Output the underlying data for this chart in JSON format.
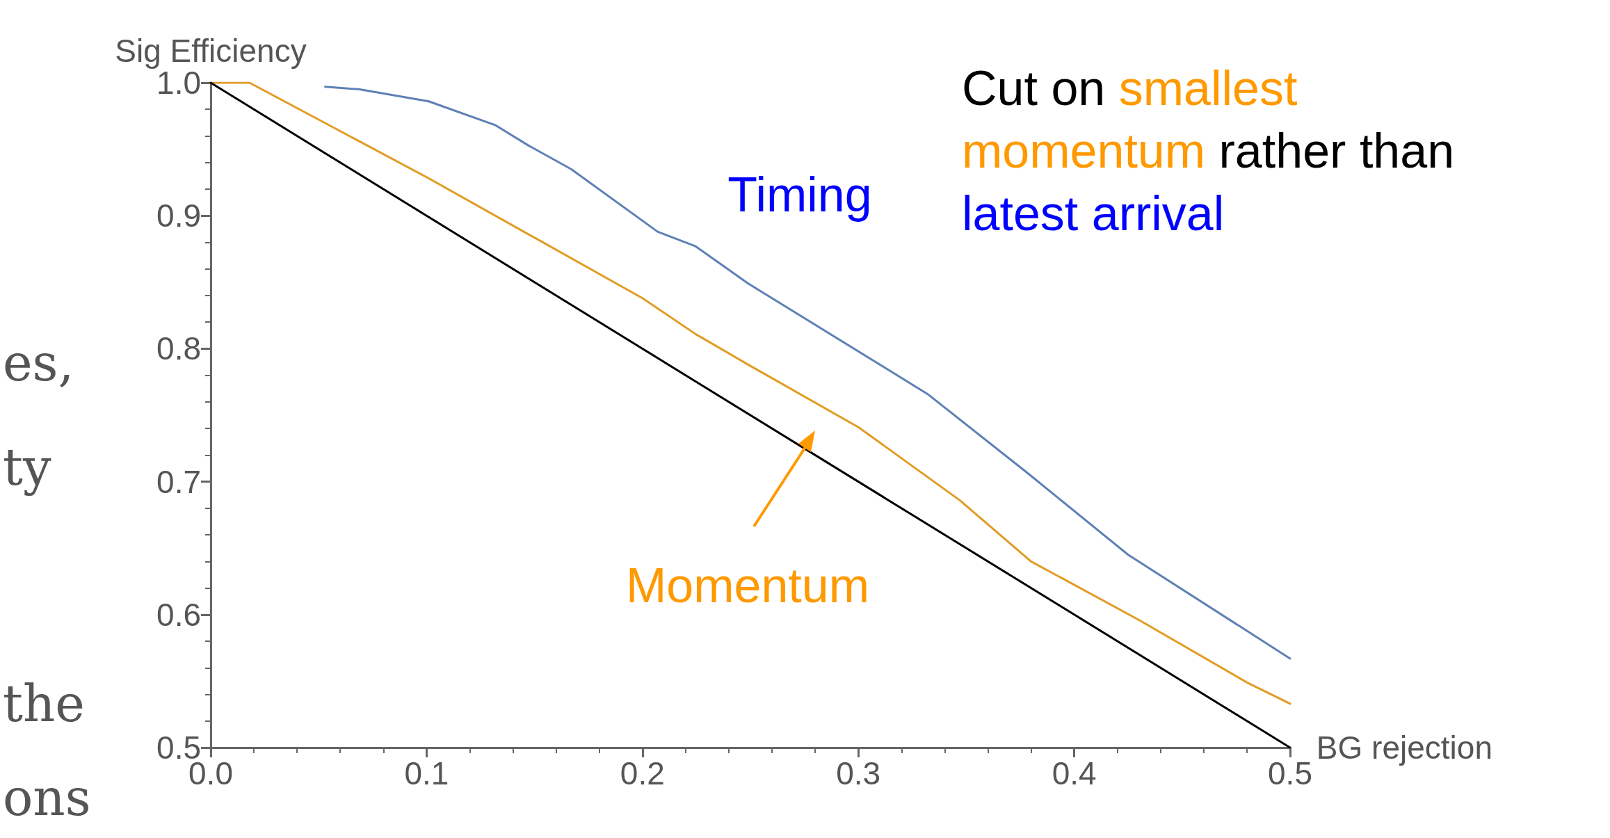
{
  "chart_data": {
    "type": "line",
    "xlabel": "BG rejection",
    "ylabel": "Sig Efficiency",
    "xlim": [
      0,
      0.5
    ],
    "ylim": [
      0.5,
      1.0
    ],
    "xticks": [
      {
        "value": 0,
        "label": "0.0"
      },
      0.1,
      0.2,
      0.3,
      0.4,
      0.5
    ],
    "yticks": [
      0.5,
      0.6,
      0.7,
      0.8,
      0.9,
      {
        "value": 1,
        "label": "1.0"
      }
    ],
    "marker": "none",
    "line_style": "solid",
    "series": [
      {
        "name": "Timing",
        "color": "#5e81b5",
        "x": [
          0.053,
          0.069,
          0.101,
          0.132,
          0.147,
          0.167,
          0.207,
          0.2246,
          0.249,
          0.332,
          0.378,
          0.425,
          0.5
        ],
        "values": [
          0.997,
          0.995,
          0.986,
          0.968,
          0.953,
          0.935,
          0.888,
          0.877,
          0.849,
          0.766,
          0.707,
          0.645,
          0.567
        ]
      },
      {
        "name": "Momentum",
        "color": "#e19c24",
        "x": [
          0,
          0.018,
          0.1,
          0.2,
          0.2246,
          0.249,
          0.3,
          0.347,
          0.38,
          0.43,
          0.48,
          0.5
        ],
        "values": [
          1.0,
          1.0,
          0.929,
          0.838,
          0.811,
          0.788,
          0.741,
          0.686,
          0.64,
          0.596,
          0.549,
          0.533
        ]
      },
      {
        "color": "#000000",
        "x": [
          0,
          0.5
        ],
        "values": [
          1.0,
          0.5
        ]
      }
    ],
    "annotations": [
      "Cut on smallest momentum rather than latest arrival",
      "es,",
      "ty",
      "the",
      "ons"
    ]
  }
}
